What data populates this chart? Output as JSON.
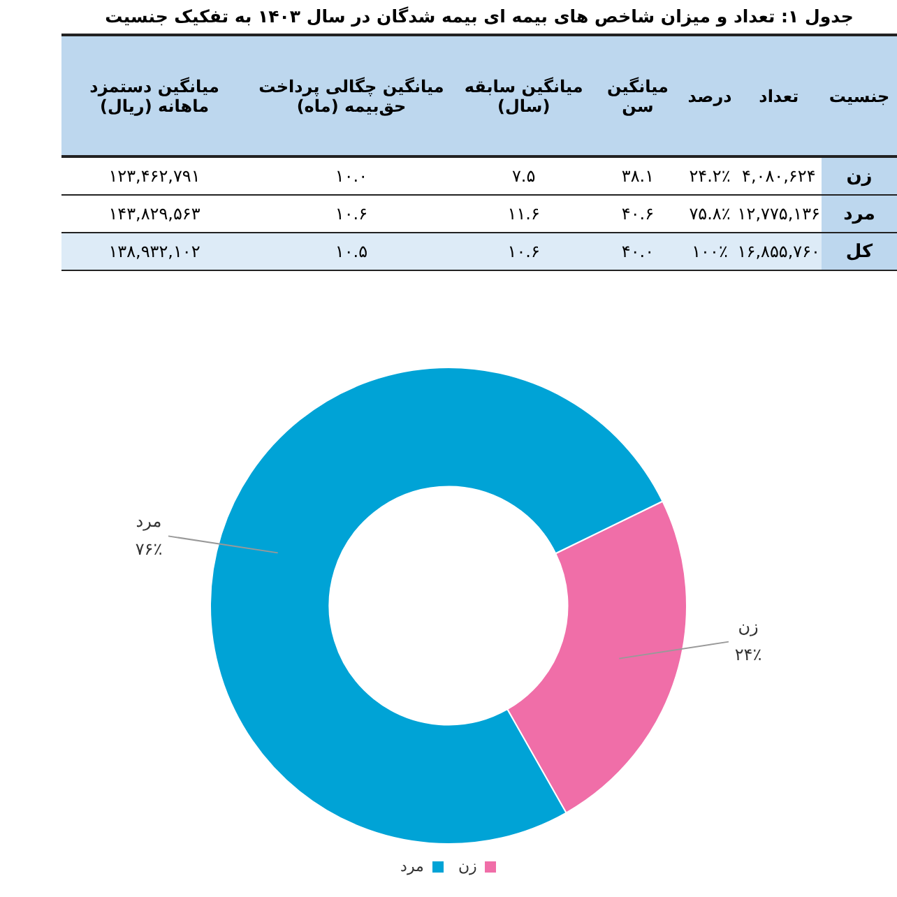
{
  "chart_data": [
    {
      "type": "other",
      "title": "جدول ۱: تعداد و میزان شاخص های بیمه ای بیمه شدگان در سال ۱۴۰۳ به تفکیک جنسیت",
      "ylabel": "جنسیت",
      "categories": [
        "تعداد",
        "درصد",
        "میانگین سن",
        "میانگین سابقه (سال)",
        "میانگین چگالی پرداخت حق‌بیمه (ماه)",
        "میانگین دستمزد ماهانه (ریال)"
      ],
      "y_categories": [
        "زن",
        "مرد",
        "کل"
      ],
      "cell_labels": [
        [
          "۴,۰۸۰,۶۲۴",
          "۲۴.۲٪",
          "۳۸.۱",
          "۷.۵",
          "۱۰.۰",
          "۱۲۳,۴۶۲,۷۹۱"
        ],
        [
          "۱۲,۷۷۵,۱۳۶",
          "۷۵.۸٪",
          "۴۰.۶",
          "۱۱.۶",
          "۱۰.۶",
          "۱۴۳,۸۲۹,۵۶۳"
        ],
        [
          "۱۶,۸۵۵,۷۶۰",
          "۱۰۰٪",
          "۴۰.۰",
          "۱۰.۶",
          "۱۰.۵",
          "۱۳۸,۹۳۲,۱۰۲"
        ]
      ]
    },
    {
      "type": "donut",
      "categories": [
        "زن",
        "مرد"
      ],
      "values": [
        24,
        76
      ],
      "colors": [
        "#f06ea8",
        "#00a3d6"
      ],
      "value_labels": [
        "۲۴٪",
        "۷۶٪"
      ],
      "legend": "bottom"
    }
  ]
}
